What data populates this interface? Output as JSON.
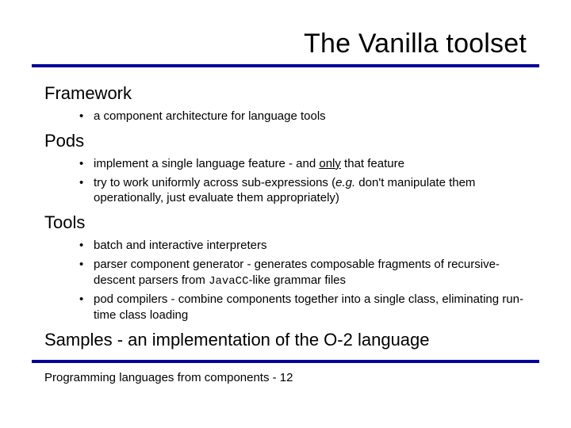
{
  "colors": {
    "rule": "#000099",
    "background": "#ffffff",
    "text": "#000000"
  },
  "typography": {
    "title_fontsize": 34,
    "heading_fontsize": 22,
    "body_fontsize": 15,
    "mono_fontsize": 14,
    "font_family": "Arial"
  },
  "title": "The Vanilla toolset",
  "sections": {
    "framework": {
      "heading": "Framework",
      "items": [
        {
          "text": "a component architecture for language tools"
        }
      ]
    },
    "pods": {
      "heading": "Pods",
      "items": [
        {
          "pre": "implement a single language feature - and ",
          "only": "only",
          "post": " that feature"
        },
        {
          "pre": "try to work uniformly across sub-expressions ",
          "paren_open": "(",
          "eg": "e.g.",
          "mid": " don't manipulate them operationally, just evaluate them appropriately",
          "paren_close": ")"
        }
      ]
    },
    "tools": {
      "heading": "Tools",
      "items": [
        {
          "text": "batch and interactive interpreters"
        },
        {
          "pre": "parser component generator - generates composable fragments of recursive-descent parsers from ",
          "code": "JavaCC",
          "post": "-like grammar files"
        },
        {
          "text": "pod compilers - combine components together into a single class, eliminating run-time class loading"
        }
      ]
    },
    "samples": {
      "heading": "Samples - an implementation of the O-2 language"
    }
  },
  "footer": "Programming languages from components - 12"
}
